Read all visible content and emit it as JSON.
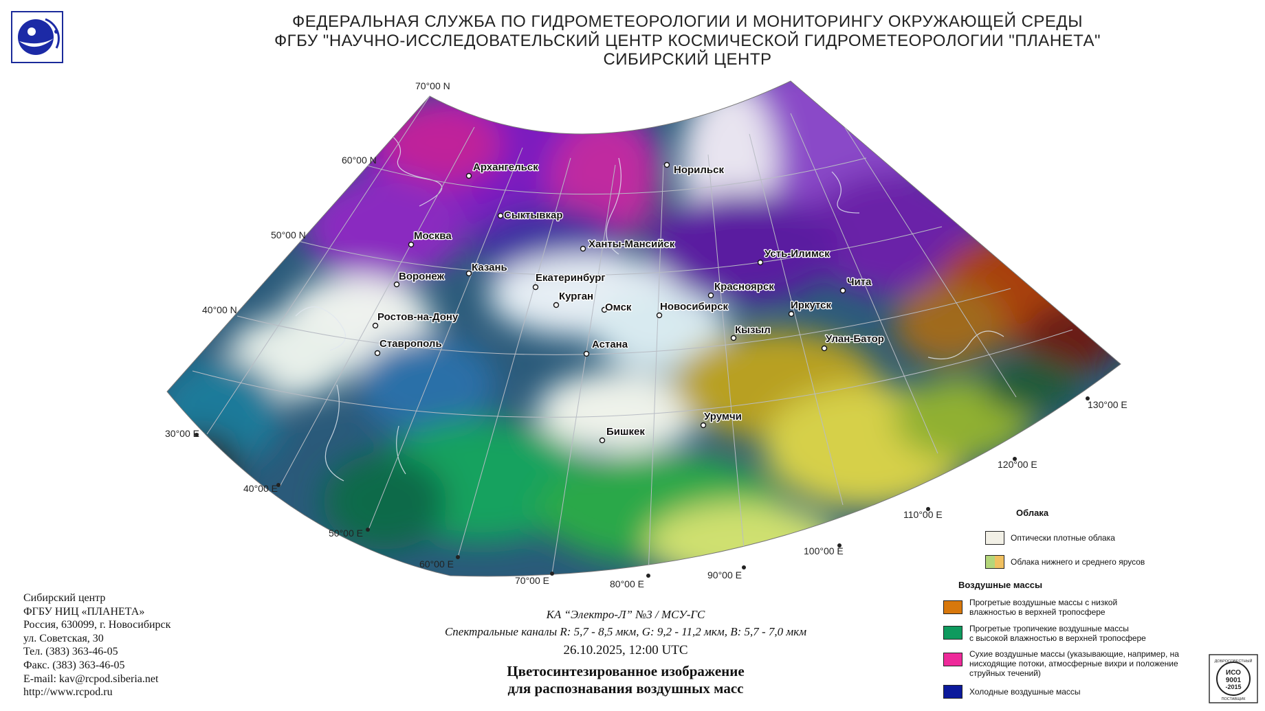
{
  "header": {
    "line1": "ФЕДЕРАЛЬНАЯ СЛУЖБА ПО ГИДРОМЕТЕОРОЛОГИИ И МОНИТОРИНГУ ОКРУЖАЮЩЕЙ СРЕДЫ",
    "line2": "ФГБУ \"НАУЧНО-ИССЛЕДОВАТЕЛЬСКИЙ ЦЕНТР КОСМИЧЕСКОЙ ГИДРОМЕТЕОРОЛОГИИ \"ПЛАНЕТА\"",
    "line3": "СИБИРСКИЙ ЦЕНТР"
  },
  "map": {
    "latitude_labels": [
      "70°00 N",
      "60°00 N",
      "50°00 N",
      "40°00 N"
    ],
    "longitude_labels": [
      "30°00 E",
      "40°00 E",
      "50°00 E",
      "60°00 E",
      "70°00 E",
      "80°00 E",
      "90°00 E",
      "100°00 E",
      "110°00 E",
      "120°00 E",
      "130°00 E"
    ],
    "cities": [
      "Архангельск",
      "Норильск",
      "Сыктывкар",
      "Москва",
      "Ханты-Мансийск",
      "Усть-Илимск",
      "Казань",
      "Воронеж",
      "Екатеринбург",
      "Красноярск",
      "Чита",
      "Курган",
      "Омск",
      "Новосибирск",
      "Иркутск",
      "Ростов-на-Дону",
      "Кызыл",
      "Улан-Батор",
      "Ставрополь",
      "Астана",
      "Урумчи",
      "Бишкек"
    ]
  },
  "contact": {
    "line1": "Сибирский центр",
    "line2": "ФГБУ НИЦ «ПЛАНЕТА»",
    "line3": "Россия, 630099, г. Новосибирск",
    "line4": "ул. Советская, 30",
    "line5": "Тел. (383) 363-46-05",
    "line6": "Факс. (383) 363-46-05",
    "line7": "E-mail: kav@rcpod.siberia.net",
    "line8": "http://www.rcpod.ru"
  },
  "caption": {
    "satellite": "КА “Электро-Л” №3 / МСУ-ГС",
    "channels": "Спектральные каналы R: 5,7 - 8,5 мкм, G: 9,2 - 11,2 мкм, B: 5,7 - 7,0 мкм",
    "datetime": "26.10.2025, 12:00 UTC",
    "title1": "Цветосинтезированное изображение",
    "title2": "для распознавания воздушных масс"
  },
  "legend": {
    "clouds_title": "Облака",
    "cloud1": "Оптически плотные облака",
    "cloud2": "Облака нижнего и среднего ярусов",
    "air_title": "Воздушные массы",
    "air1a": "Прогретые воздушные массы с низкой",
    "air1b": "влажностью в верхней тропосфере",
    "air2a": "Прогретые тропичекие воздушные массы",
    "air2b": "с высокой влажностью в верхней тропосфере",
    "air3a": "Сухие воздушные массы (указывающие, например, на",
    "air3b": "нисходящие потоки, атмосферные вихри и положение",
    "air3c": "струйных течений)",
    "air4": "Холодные воздушные массы",
    "colors": {
      "dense_clouds": "#f2f0e6",
      "low_mid_a": "#b4d67a",
      "low_mid_b": "#f0c060",
      "warm_dry": "#d8780c",
      "tropical_moist": "#0e9a5e",
      "dry_sinking": "#ee2a9a",
      "cold": "#0c1a9c"
    }
  },
  "cert": {
    "l1": "ДОБРОСОВЕСТНЫЙ",
    "l2": "ИСО",
    "l3": "9001",
    "l4": "-2015",
    "l5": "ПОСТАВЩИК"
  }
}
